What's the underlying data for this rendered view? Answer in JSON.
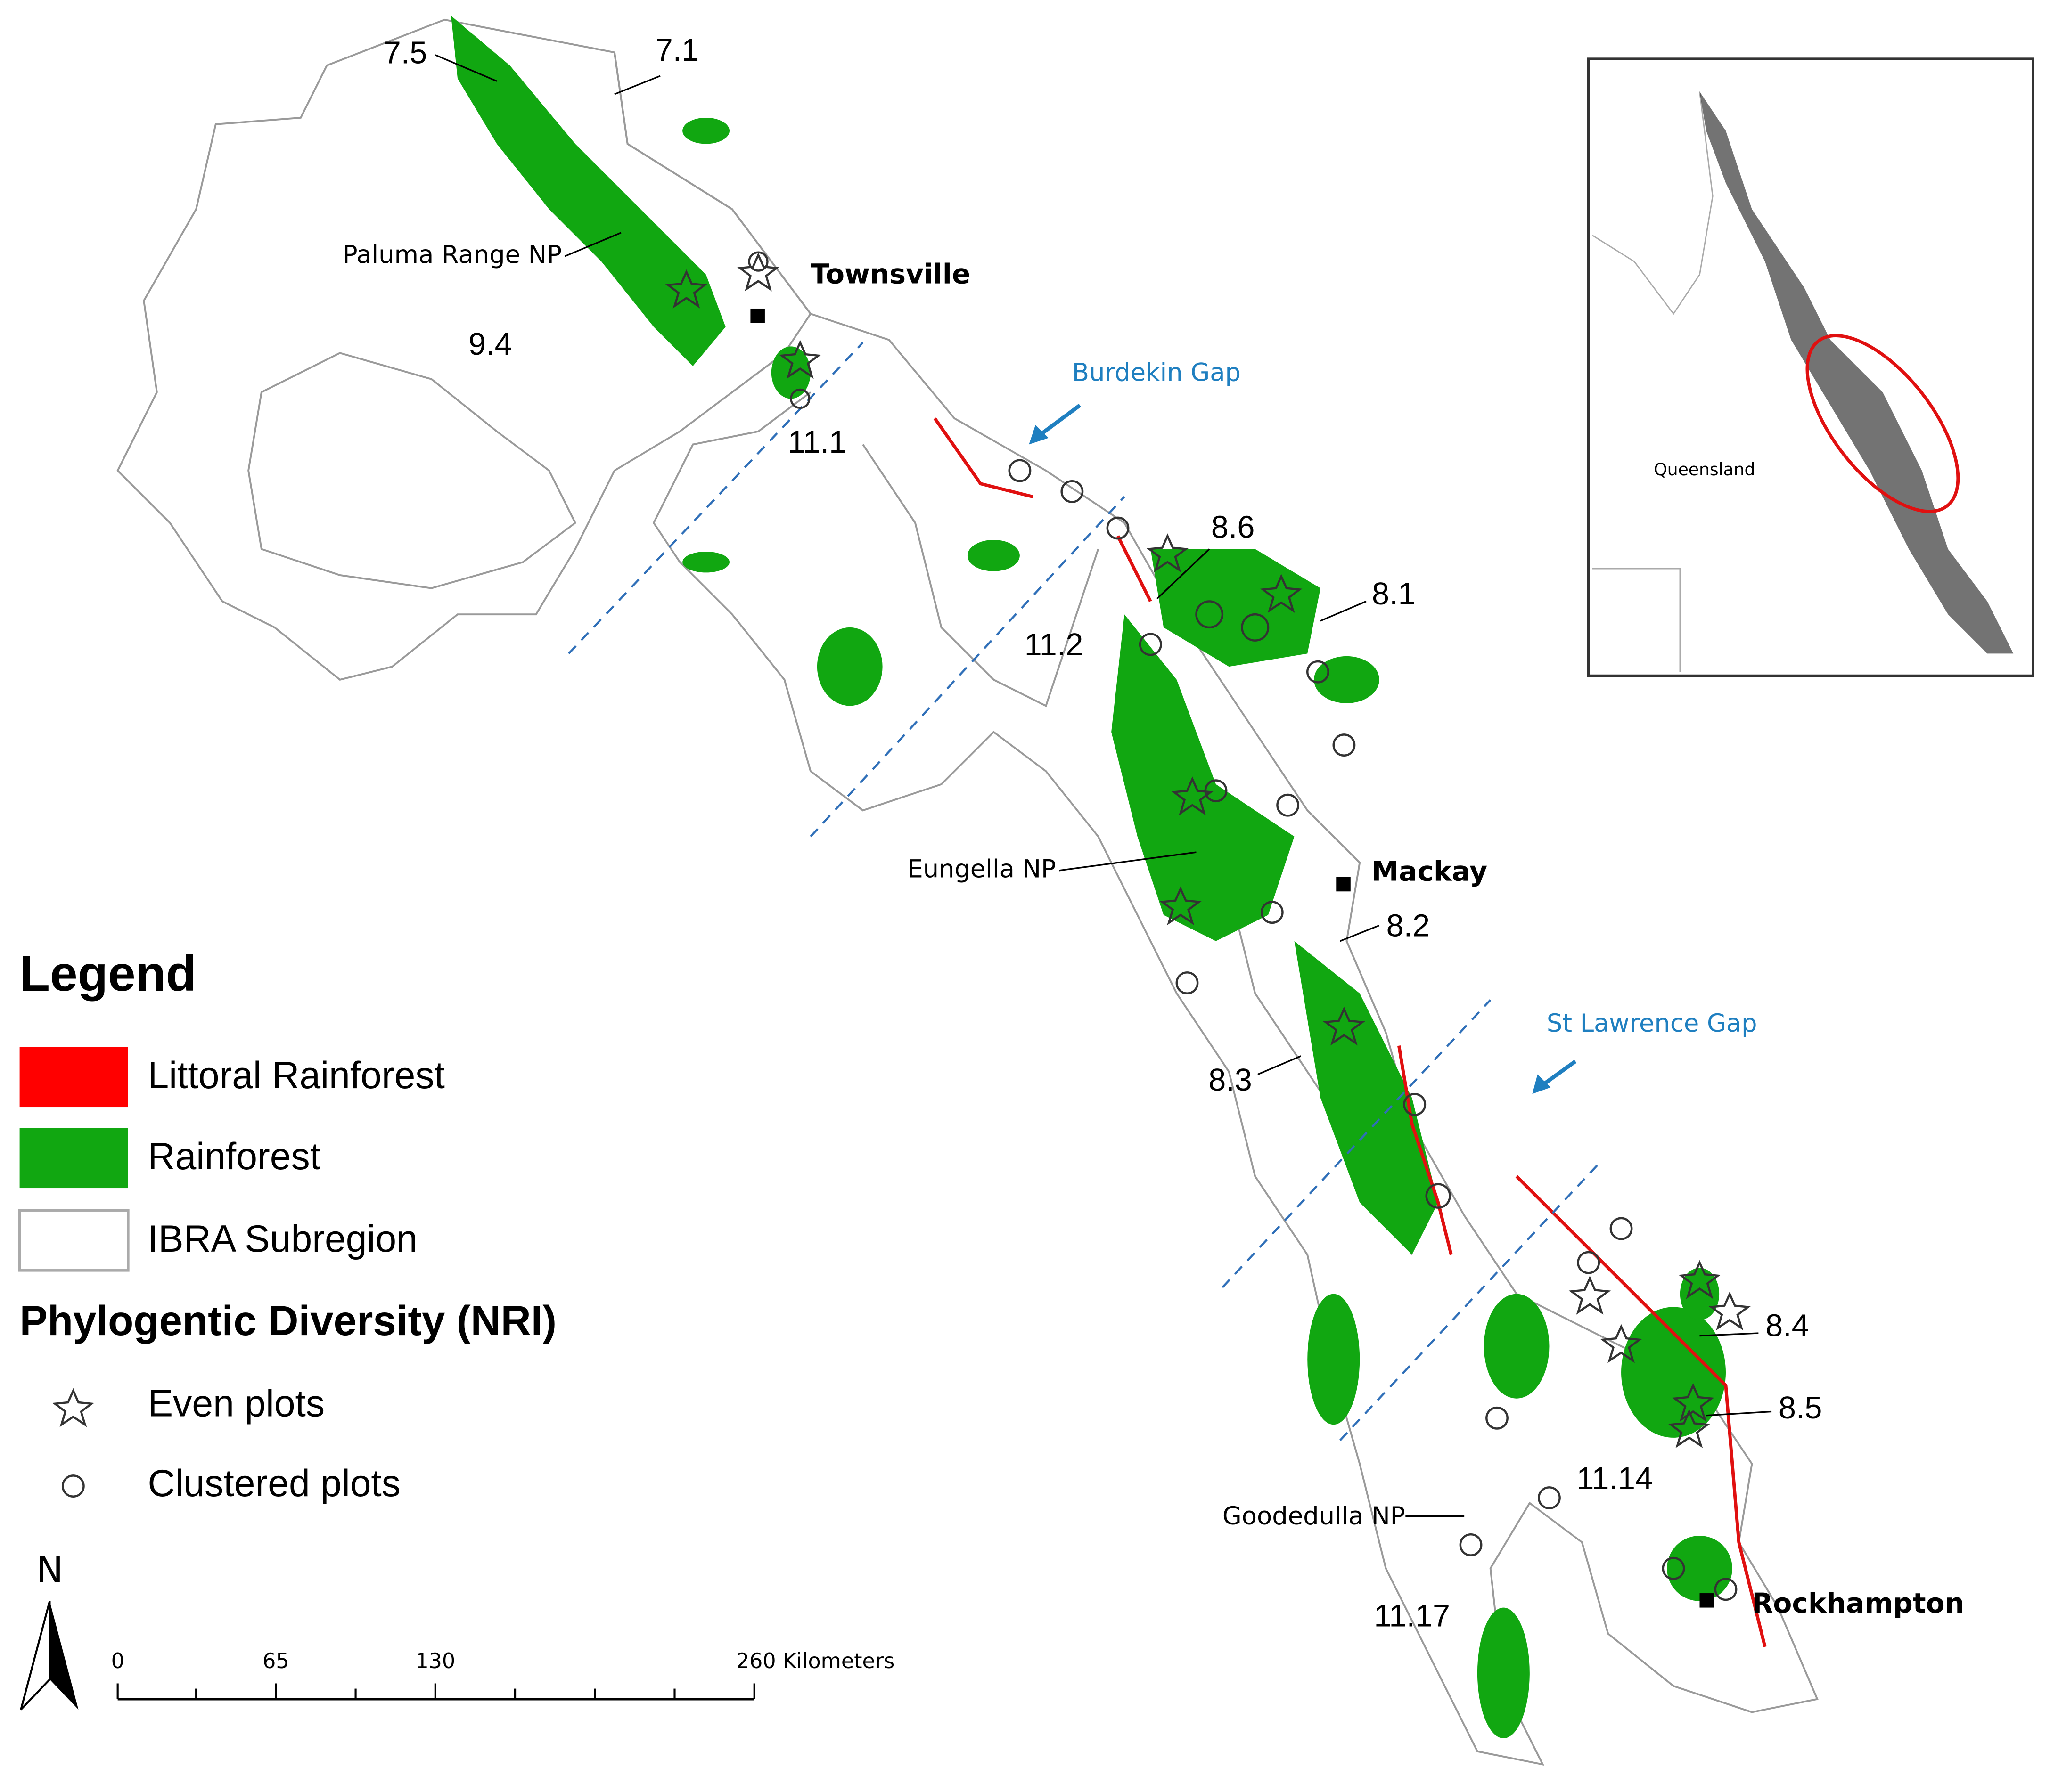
{
  "map": {
    "region_labels": [
      "7.5",
      "7.1",
      "9.4",
      "11.1",
      "8.6",
      "8.1",
      "11.2",
      "8.2",
      "8.3",
      "8.4",
      "8.5",
      "11.14",
      "11.17"
    ],
    "place_labels": [
      "Townsville",
      "Mackay",
      "Rockhampton"
    ],
    "park_labels": [
      "Paluma Range NP",
      "Eungella NP",
      "Goodedulla NP"
    ],
    "gap_labels": [
      "Burdekin Gap",
      "St Lawrence Gap"
    ],
    "inset_label": "Queensland"
  },
  "legend": {
    "title": "Legend",
    "items": [
      "Littoral Rainforest",
      "Rainforest",
      "IBRA Subregion"
    ],
    "subtitle": "Phylogentic Diversity (NRI)",
    "markers": [
      "Even plots",
      "Clustered plots"
    ]
  },
  "north": "N",
  "scale_bar": {
    "labels": [
      "0",
      "65",
      "130",
      "260 Kilometers"
    ]
  }
}
